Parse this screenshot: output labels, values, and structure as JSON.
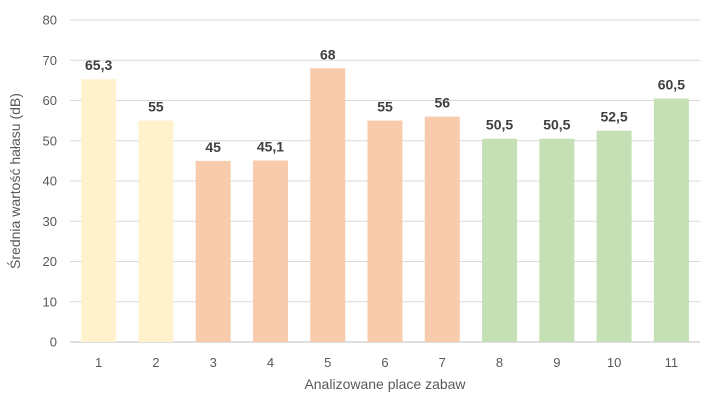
{
  "chart_data": {
    "type": "bar",
    "xlabel": "Analizowane place zabaw",
    "ylabel": "Średnia wartość hałasu (dB)",
    "ylim": [
      0,
      80
    ],
    "yticks": [
      0,
      10,
      20,
      30,
      40,
      50,
      60,
      70,
      80
    ],
    "grid": true,
    "categories": [
      "1",
      "2",
      "3",
      "4",
      "5",
      "6",
      "7",
      "8",
      "9",
      "10",
      "11"
    ],
    "values": [
      65.3,
      55,
      45,
      45.1,
      68,
      55,
      56,
      50.5,
      50.5,
      52.5,
      60.5
    ],
    "data_labels": [
      "65,3",
      "55",
      "45",
      "45,1",
      "68",
      "55",
      "56",
      "50,5",
      "50,5",
      "52,5",
      "60,5"
    ],
    "bar_colors": [
      "#FFF2CC",
      "#FFF2CC",
      "#F8CBAD",
      "#F8CBAD",
      "#F8CBAD",
      "#F8CBAD",
      "#F8CBAD",
      "#C5E0B4",
      "#C5E0B4",
      "#C5E0B4",
      "#C5E0B4"
    ]
  }
}
